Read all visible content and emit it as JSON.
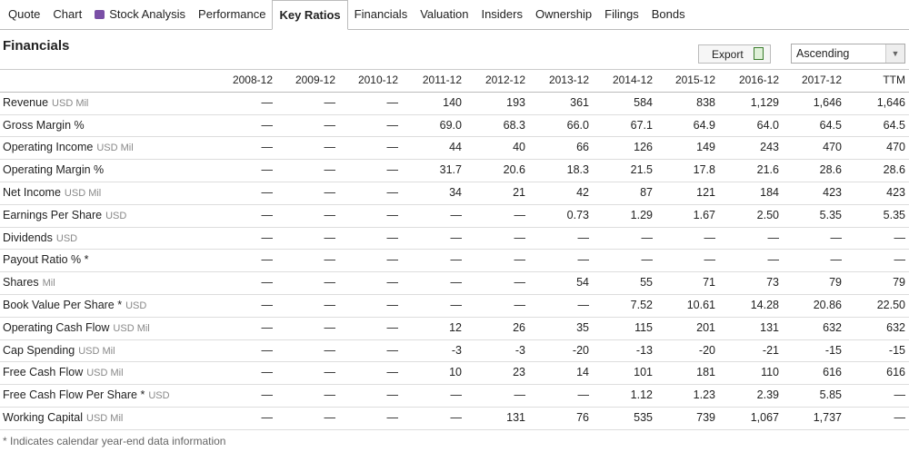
{
  "tabs": [
    "Quote",
    "Chart",
    "Stock Analysis",
    "Performance",
    "Key Ratios",
    "Financials",
    "Valuation",
    "Insiders",
    "Ownership",
    "Filings",
    "Bonds"
  ],
  "active_tab": 4,
  "header": {
    "title": "Financials",
    "export": "Export",
    "sort": "Ascending"
  },
  "table": {
    "columns": [
      "2008-12",
      "2009-12",
      "2010-12",
      "2011-12",
      "2012-12",
      "2013-12",
      "2014-12",
      "2015-12",
      "2016-12",
      "2017-12",
      "TTM"
    ],
    "rows": [
      {
        "label": "Revenue",
        "unit": "USD Mil",
        "cells": [
          "—",
          "—",
          "—",
          "140",
          "193",
          "361",
          "584",
          "838",
          "1,129",
          "1,646",
          "1,646"
        ]
      },
      {
        "label": "Gross Margin %",
        "cells": [
          "—",
          "—",
          "—",
          "69.0",
          "68.3",
          "66.0",
          "67.1",
          "64.9",
          "64.0",
          "64.5",
          "64.5"
        ]
      },
      {
        "label": "Operating Income",
        "unit": "USD Mil",
        "cells": [
          "—",
          "—",
          "—",
          "44",
          "40",
          "66",
          "126",
          "149",
          "243",
          "470",
          "470"
        ]
      },
      {
        "label": "Operating Margin %",
        "cells": [
          "—",
          "—",
          "—",
          "31.7",
          "20.6",
          "18.3",
          "21.5",
          "17.8",
          "21.6",
          "28.6",
          "28.6"
        ]
      },
      {
        "label": "Net Income",
        "unit": "USD Mil",
        "cells": [
          "—",
          "—",
          "—",
          "34",
          "21",
          "42",
          "87",
          "121",
          "184",
          "423",
          "423"
        ]
      },
      {
        "label": "Earnings Per Share",
        "unit": "USD",
        "cells": [
          "—",
          "—",
          "—",
          "—",
          "—",
          "0.73",
          "1.29",
          "1.67",
          "2.50",
          "5.35",
          "5.35"
        ]
      },
      {
        "label": "Dividends",
        "unit": "USD",
        "cells": [
          "—",
          "—",
          "—",
          "—",
          "—",
          "—",
          "—",
          "—",
          "—",
          "—",
          "—"
        ]
      },
      {
        "label": "Payout Ratio % *",
        "cells": [
          "—",
          "—",
          "—",
          "—",
          "—",
          "—",
          "—",
          "—",
          "—",
          "—",
          "—"
        ]
      },
      {
        "label": "Shares",
        "unit": "Mil",
        "cells": [
          "—",
          "—",
          "—",
          "—",
          "—",
          "54",
          "55",
          "71",
          "73",
          "79",
          "79"
        ]
      },
      {
        "label": "Book Value Per Share *",
        "unit": "USD",
        "cells": [
          "—",
          "—",
          "—",
          "—",
          "—",
          "—",
          "7.52",
          "10.61",
          "14.28",
          "20.86",
          "22.50"
        ]
      },
      {
        "label": "Operating Cash Flow",
        "unit": "USD Mil",
        "cells": [
          "—",
          "—",
          "—",
          "12",
          "26",
          "35",
          "115",
          "201",
          "131",
          "632",
          "632"
        ]
      },
      {
        "label": "Cap Spending",
        "unit": "USD Mil",
        "cells": [
          "—",
          "—",
          "—",
          "-3",
          "-3",
          "-20",
          "-13",
          "-20",
          "-21",
          "-15",
          "-15"
        ]
      },
      {
        "label": "Free Cash Flow",
        "unit": "USD Mil",
        "cells": [
          "—",
          "—",
          "—",
          "10",
          "23",
          "14",
          "101",
          "181",
          "110",
          "616",
          "616"
        ]
      },
      {
        "label": "Free Cash Flow Per Share *",
        "unit": "USD",
        "cells": [
          "—",
          "—",
          "—",
          "—",
          "—",
          "—",
          "1.12",
          "1.23",
          "2.39",
          "5.85",
          "—"
        ]
      },
      {
        "label": "Working Capital",
        "unit": "USD Mil",
        "cells": [
          "—",
          "—",
          "—",
          "—",
          "131",
          "76",
          "535",
          "739",
          "1,067",
          "1,737",
          "—"
        ]
      }
    ]
  },
  "footnote": "* Indicates calendar year-end data information"
}
